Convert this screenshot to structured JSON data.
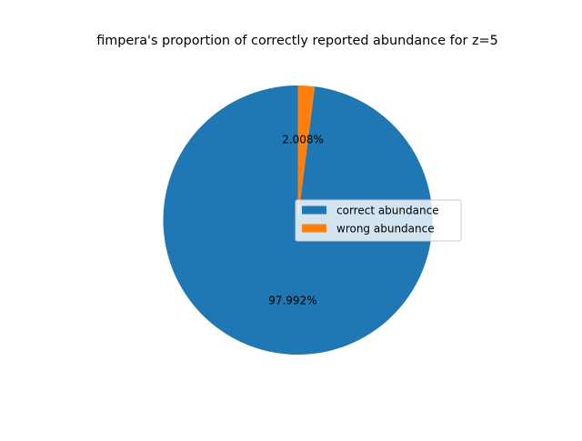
{
  "chart_data": {
    "type": "pie",
    "title": "fimpera's proportion of correctly reported abundance for z=5",
    "slices": [
      {
        "label": "correct abundance",
        "value": 97.992,
        "pct_label": "97.992%",
        "color": "#1f77b4"
      },
      {
        "label": "wrong abundance",
        "value": 2.008,
        "pct_label": "2.008%",
        "color": "#ff7f0e"
      }
    ],
    "start_angle_deg": 90,
    "direction": "counterclockwise",
    "legend_placement": "center-right"
  }
}
